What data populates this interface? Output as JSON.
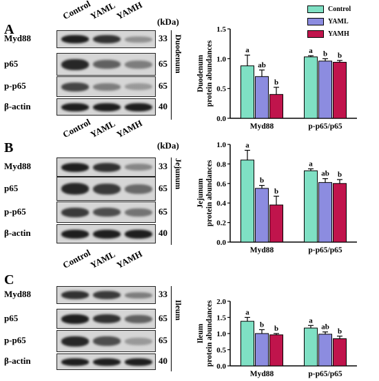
{
  "legend": [
    {
      "name": "Control",
      "color": "#7fe0c4"
    },
    {
      "name": "YAML",
      "color": "#8c8ce0"
    },
    {
      "name": "YAMH",
      "color": "#c0144c"
    }
  ],
  "panels": [
    {
      "letter": "A",
      "tissue": "Duodenum",
      "lanes": [
        "Control",
        "YAML",
        "YAMH"
      ],
      "kda_label": "(kDa)",
      "blots": [
        {
          "name": "Myd88",
          "kda": "33",
          "intensity": [
            0.95,
            0.85,
            0.35
          ]
        },
        {
          "name": "p65",
          "kda": "65",
          "intensity": [
            0.9,
            0.6,
            0.45
          ]
        },
        {
          "name": "p-p65",
          "kda": "65",
          "intensity": [
            0.75,
            0.45,
            0.3
          ]
        },
        {
          "name": "β-actin",
          "kda": "40",
          "intensity": [
            0.95,
            0.95,
            0.95
          ]
        }
      ]
    },
    {
      "letter": "B",
      "tissue": "Jejunum",
      "lanes": [
        "Control",
        "YAML",
        "YAMH"
      ],
      "kda_label": "(kDa)",
      "blots": [
        {
          "name": "Myd88",
          "kda": "33",
          "intensity": [
            0.95,
            0.85,
            0.4
          ]
        },
        {
          "name": "p65",
          "kda": "65",
          "intensity": [
            0.9,
            0.8,
            0.55
          ]
        },
        {
          "name": "p-p65",
          "kda": "65",
          "intensity": [
            0.8,
            0.7,
            0.5
          ]
        },
        {
          "name": "β-actin",
          "kda": "40",
          "intensity": [
            0.95,
            0.95,
            0.95
          ]
        }
      ]
    },
    {
      "letter": "C",
      "tissue": "Ileum",
      "lanes": [
        "Control",
        "YAML",
        "YAMH"
      ],
      "kda_label": "",
      "blots": [
        {
          "name": "Myd88",
          "kda": "33",
          "intensity": [
            0.85,
            0.8,
            0.45
          ]
        },
        {
          "name": "p65",
          "kda": "65",
          "intensity": [
            0.95,
            0.85,
            0.6
          ]
        },
        {
          "name": "p-p65",
          "kda": "65",
          "intensity": [
            0.9,
            0.7,
            0.3
          ]
        },
        {
          "name": "β-actin",
          "kda": "40",
          "intensity": [
            0.95,
            0.95,
            0.95
          ]
        }
      ]
    }
  ],
  "chart_data": [
    {
      "type": "bar",
      "ylabel": [
        "Duodenum",
        "protein abundances"
      ],
      "categories": [
        "Myd88",
        "p-p65/p65"
      ],
      "ylim": [
        0,
        1.5
      ],
      "yticks": [
        "0.0",
        "0.5",
        "1.0",
        "1.5"
      ],
      "series": [
        {
          "name": "Control",
          "values": [
            0.88,
            1.03
          ],
          "errors": [
            0.18,
            0.02
          ],
          "letters": [
            "a",
            "a"
          ]
        },
        {
          "name": "YAML",
          "values": [
            0.7,
            0.96
          ],
          "errors": [
            0.11,
            0.04
          ],
          "letters": [
            "ab",
            "b"
          ]
        },
        {
          "name": "YAMH",
          "values": [
            0.4,
            0.94
          ],
          "errors": [
            0.12,
            0.03
          ],
          "letters": [
            "b",
            "b"
          ]
        }
      ]
    },
    {
      "type": "bar",
      "ylabel": [
        "Jejunum",
        "protein abundances"
      ],
      "categories": [
        "Myd88",
        "p-p65/p65"
      ],
      "ylim": [
        0,
        1.0
      ],
      "yticks": [
        "0.0",
        "0.2",
        "0.4",
        "0.6",
        "0.8",
        "1.0"
      ],
      "series": [
        {
          "name": "Control",
          "values": [
            0.84,
            0.73
          ],
          "errors": [
            0.1,
            0.02
          ],
          "letters": [
            "a",
            "a"
          ]
        },
        {
          "name": "YAML",
          "values": [
            0.55,
            0.61
          ],
          "errors": [
            0.03,
            0.04
          ],
          "letters": [
            "b",
            "ab"
          ]
        },
        {
          "name": "YAMH",
          "values": [
            0.38,
            0.6
          ],
          "errors": [
            0.09,
            0.04
          ],
          "letters": [
            "b",
            "b"
          ]
        }
      ]
    },
    {
      "type": "bar",
      "ylabel": [
        "Ileum",
        "protein abundances"
      ],
      "categories": [
        "Myd88",
        "p-p65/p65"
      ],
      "ylim": [
        0,
        2.0
      ],
      "yticks": [
        "0.0",
        "0.5",
        "1.0",
        "1.5",
        "2.0"
      ],
      "series": [
        {
          "name": "Control",
          "values": [
            1.38,
            1.17
          ],
          "errors": [
            0.12,
            0.08
          ],
          "letters": [
            "a",
            "a"
          ]
        },
        {
          "name": "YAML",
          "values": [
            1.0,
            0.98
          ],
          "errors": [
            0.12,
            0.07
          ],
          "letters": [
            "b",
            "ab"
          ]
        },
        {
          "name": "YAMH",
          "values": [
            0.96,
            0.84
          ],
          "errors": [
            0.04,
            0.08
          ],
          "letters": [
            "b",
            "b"
          ]
        }
      ]
    }
  ]
}
